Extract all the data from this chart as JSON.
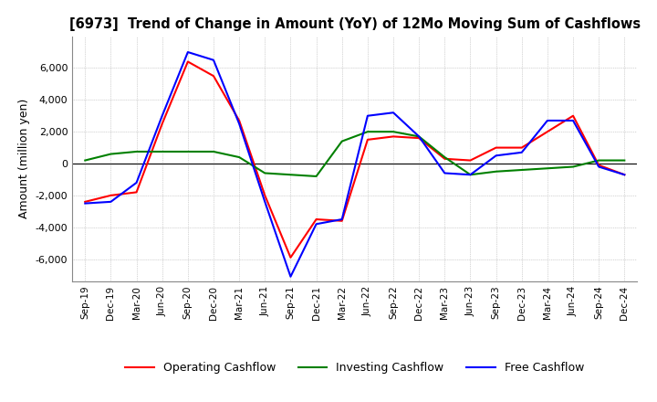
{
  "title": "[6973]  Trend of Change in Amount (YoY) of 12Mo Moving Sum of Cashflows",
  "ylabel": "Amount (million yen)",
  "background_color": "#ffffff",
  "grid_color": "#aaaaaa",
  "ylim": [
    -7400,
    8000
  ],
  "yticks": [
    -6000,
    -4000,
    -2000,
    0,
    2000,
    4000,
    6000
  ],
  "x_labels": [
    "Sep-19",
    "Dec-19",
    "Mar-20",
    "Jun-20",
    "Sep-20",
    "Dec-20",
    "Mar-21",
    "Jun-21",
    "Sep-21",
    "Dec-21",
    "Mar-22",
    "Jun-22",
    "Sep-22",
    "Dec-22",
    "Mar-23",
    "Jun-23",
    "Sep-23",
    "Dec-23",
    "Mar-24",
    "Jun-24",
    "Sep-24",
    "Dec-24"
  ],
  "operating_cashflow": [
    -2400,
    -2000,
    -1800,
    2500,
    6400,
    5500,
    2700,
    -2000,
    -5900,
    -3500,
    -3600,
    1500,
    1700,
    1600,
    300,
    200,
    1000,
    1000,
    2000,
    3000,
    -100,
    -700
  ],
  "investing_cashflow": [
    200,
    600,
    750,
    750,
    750,
    750,
    400,
    -600,
    -700,
    -800,
    1400,
    2000,
    2000,
    1700,
    400,
    -700,
    -500,
    -400,
    -300,
    -200,
    200,
    200
  ],
  "free_cashflow": [
    -2500,
    -2400,
    -1200,
    3000,
    7000,
    6500,
    2500,
    -2400,
    -7100,
    -3800,
    -3500,
    3000,
    3200,
    1700,
    -600,
    -700,
    500,
    700,
    2700,
    2700,
    -200,
    -700
  ],
  "operating_color": "#ff0000",
  "investing_color": "#008000",
  "free_color": "#0000ff",
  "line_width": 1.5
}
